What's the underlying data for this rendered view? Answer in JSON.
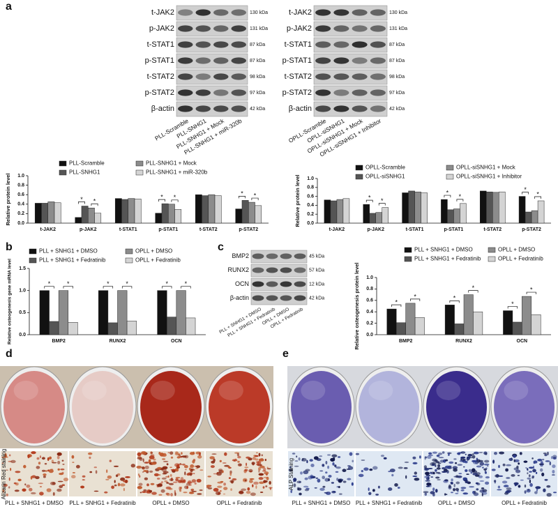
{
  "panel_labels": [
    "a",
    "b",
    "c",
    "d",
    "e"
  ],
  "blots": [
    {
      "rows": [
        {
          "label": "t-JAK2",
          "kda": "130 kDa"
        },
        {
          "label": "p-JAK2",
          "kda": "131 kDa"
        },
        {
          "label": "t-STAT1",
          "kda": "87 kDa"
        },
        {
          "label": "p-STAT1",
          "kda": "87 kDa"
        },
        {
          "label": "t-STAT2",
          "kda": "98 kDa"
        },
        {
          "label": "p-STAT2",
          "kda": "97 kDa"
        },
        {
          "label": "β-actin",
          "kda": "42 kDa"
        }
      ],
      "lanes": [
        "PLL-Scramble",
        "PLL-SNHG1",
        "PLL-SNHG1 + Mock",
        "PLL-SNHG1 + miR-320b"
      ]
    },
    {
      "rows": [
        {
          "label": "t-JAK2",
          "kda": "130 kDa"
        },
        {
          "label": "p-JAK2",
          "kda": "131 kDa"
        },
        {
          "label": "t-STAT1",
          "kda": "87 kDa"
        },
        {
          "label": "p-STAT1",
          "kda": "87 kDa"
        },
        {
          "label": "t-STAT2",
          "kda": "98 kDa"
        },
        {
          "label": "p-STAT2",
          "kda": "97 kDa"
        },
        {
          "label": "β-actin",
          "kda": "42 kDa"
        }
      ],
      "lanes": [
        "OPLL-Scramble",
        "OPLL-siSNHG1",
        "OPLL-siSNHG1 + Mock",
        "OPLL-siSNHG1 + Inhibitor"
      ]
    },
    {
      "rows": [
        {
          "label": "BMP2",
          "kda": "45 kDa"
        },
        {
          "label": "RUNX2",
          "kda": "57 kDa"
        },
        {
          "label": "OCN",
          "kda": "12 kDa"
        },
        {
          "label": "β-actin",
          "kda": "42 kDa"
        }
      ],
      "lanes": [
        "PLL + SNHG1 + DMSO",
        "PLL + SNHG1 + Fedratinib",
        "OPLL + DMSO",
        "OPLL + Fedratinib"
      ]
    }
  ],
  "chart_data": [
    {
      "type": "bar",
      "y_label": "Relative protein level",
      "categories": [
        "t-JAK2",
        "p-JAK2",
        "t-STAT1",
        "p-STAT1",
        "t-STAT2",
        "p-STAT2"
      ],
      "series": [
        {
          "name": "PLL-Scramble",
          "color": "#111111",
          "values": [
            0.42,
            0.12,
            0.52,
            0.21,
            0.6,
            0.3
          ]
        },
        {
          "name": "PLL-SNHG1",
          "color": "#555555",
          "values": [
            0.42,
            0.36,
            0.5,
            0.41,
            0.58,
            0.48
          ]
        },
        {
          "name": "PLL-SNHG1 + Mock",
          "color": "#8c8c8c",
          "values": [
            0.45,
            0.32,
            0.52,
            0.4,
            0.6,
            0.44
          ]
        },
        {
          "name": "PLL-SNHG1 + miR-320b",
          "color": "#d4d4d4",
          "values": [
            0.43,
            0.21,
            0.51,
            0.29,
            0.58,
            0.37
          ]
        }
      ],
      "ylim": [
        0,
        1
      ],
      "yticks": [
        {
          "value": 0,
          "label": "0.0"
        },
        0.2,
        0.4,
        0.6,
        0.8,
        {
          "value": 1,
          "label": "1.0"
        }
      ],
      "annotations": [
        "*",
        "*",
        "*",
        "*",
        "*",
        "*"
      ]
    },
    {
      "type": "bar",
      "y_label": "Relative protein level",
      "categories": [
        "t-JAK2",
        "p-JAK2",
        "t-STAT1",
        "p-STAT1",
        "t-STAT2",
        "p-STAT2"
      ],
      "series": [
        {
          "name": "OPLL-Scramble",
          "color": "#111111",
          "values": [
            0.52,
            0.42,
            0.68,
            0.53,
            0.72,
            0.6
          ]
        },
        {
          "name": "OPLL-siSNHG1",
          "color": "#555555",
          "values": [
            0.5,
            0.22,
            0.72,
            0.3,
            0.7,
            0.25
          ]
        },
        {
          "name": "OPLL-siSNHG1 + Mock",
          "color": "#8c8c8c",
          "values": [
            0.53,
            0.24,
            0.7,
            0.32,
            0.69,
            0.28
          ]
        },
        {
          "name": "OPLL-siSNHG1 + Inhibitor",
          "color": "#d4d4d4",
          "values": [
            0.55,
            0.35,
            0.68,
            0.44,
            0.7,
            0.5
          ]
        }
      ],
      "ylim": [
        0,
        1
      ],
      "yticks": [
        {
          "value": 0,
          "label": "0.0"
        },
        0.2,
        0.4,
        0.6,
        0.8,
        {
          "value": 1,
          "label": "1.0"
        }
      ],
      "annotations": [
        "*",
        "*",
        "*",
        "*",
        "*",
        "*"
      ]
    },
    {
      "type": "bar",
      "y_label": "Relative osteogenesis gene mRNA level",
      "categories": [
        "BMP2",
        "RUNX2",
        "OCN"
      ],
      "series": [
        {
          "name": "PLL + SNHG1 + DMSO",
          "color": "#111111",
          "values": [
            1.0,
            1.0,
            1.0
          ]
        },
        {
          "name": "PLL + SNHG1 + Fedratinib",
          "color": "#555555",
          "values": [
            0.3,
            0.27,
            0.4
          ]
        },
        {
          "name": "OPLL + DMSO",
          "color": "#8c8c8c",
          "values": [
            1.0,
            1.0,
            1.0
          ]
        },
        {
          "name": "OPLL + Fedratinib",
          "color": "#d4d4d4",
          "values": [
            0.28,
            0.31,
            0.38
          ]
        }
      ],
      "ylim": [
        0,
        1.5
      ],
      "yticks": [
        {
          "value": 0,
          "label": "0.0"
        },
        0.5,
        {
          "value": 1,
          "label": "1.0"
        },
        1.5
      ],
      "annotations": [
        "*",
        "*",
        "*",
        "*",
        "*",
        "*"
      ]
    },
    {
      "type": "bar",
      "y_label": "Relative osteogenesis protein level",
      "categories": [
        "BMP2",
        "RUNX2",
        "OCN"
      ],
      "series": [
        {
          "name": "PLL + SNHG1 + DMSO",
          "color": "#111111",
          "values": [
            0.45,
            0.52,
            0.42
          ]
        },
        {
          "name": "PLL + SNHG1 + Fedratinib",
          "color": "#555555",
          "values": [
            0.21,
            0.19,
            0.22
          ]
        },
        {
          "name": "OPLL + DMSO",
          "color": "#8c8c8c",
          "values": [
            0.55,
            0.7,
            0.67
          ]
        },
        {
          "name": "OPLL + Fedratinib",
          "color": "#d4d4d4",
          "values": [
            0.3,
            0.4,
            0.35
          ]
        }
      ],
      "ylim": [
        0,
        1
      ],
      "yticks": [
        {
          "value": 0,
          "label": "0.0"
        },
        0.2,
        0.4,
        0.6,
        0.8,
        {
          "value": 1,
          "label": "1.0"
        }
      ],
      "annotations": [
        "*",
        "*",
        "*",
        "*",
        "*",
        "*"
      ]
    }
  ],
  "stains": [
    {
      "label": "Alizarin Red staining",
      "captions": [
        "PLL + SNHG1 + DMSO",
        "PLL + SNHG1 + Fedratinib",
        "OPLL + DMSO",
        "OPLL + Fedratinib"
      ]
    },
    {
      "label": "ALP Staining",
      "captions": [
        "PLL + SNHG1 + DMSO",
        "PLL + SNHG1 + Fedratinib",
        "OPLL + DMSO",
        "OPLL + Fedratinib"
      ]
    }
  ]
}
